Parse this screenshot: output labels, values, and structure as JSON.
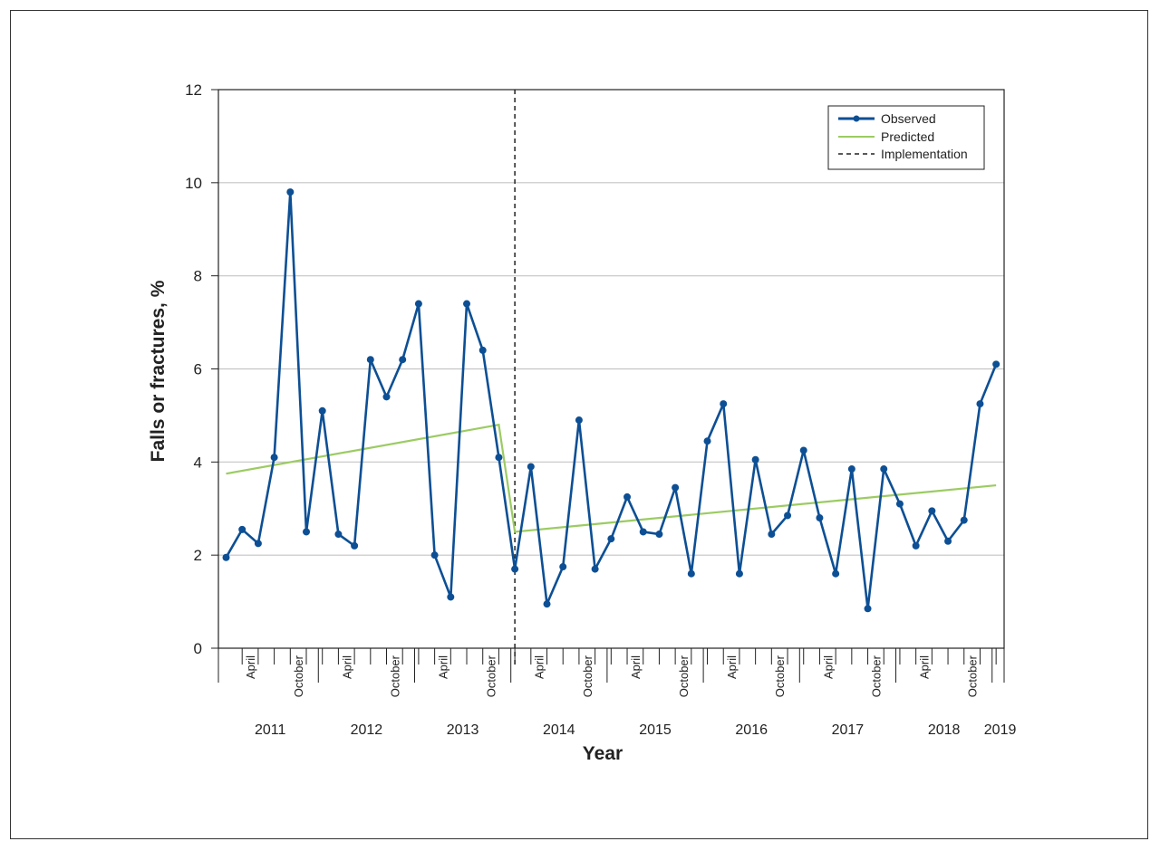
{
  "chart_data": {
    "type": "line",
    "title": "",
    "xlabel": "Year",
    "ylabel": "Falls or fractures, %",
    "ylim": [
      0,
      12
    ],
    "yticks": [
      0,
      2,
      4,
      6,
      8,
      10,
      12
    ],
    "grid": "horizontal",
    "legend_position": "top-right",
    "x_start": "2011-01",
    "x_end": "2019-02",
    "years": [
      "2011",
      "2012",
      "2013",
      "2014",
      "2015",
      "2016",
      "2017",
      "2018",
      "2019"
    ],
    "month_labels": [
      "April",
      "October"
    ],
    "series": [
      {
        "name": "Observed",
        "color": "#0d4f94",
        "marker": "circle",
        "x": [
          "2011-01",
          "2011-03",
          "2011-05",
          "2011-07",
          "2011-09",
          "2011-11",
          "2012-01",
          "2012-03",
          "2012-05",
          "2012-07",
          "2012-09",
          "2012-11",
          "2013-01",
          "2013-03",
          "2013-05",
          "2013-07",
          "2013-09",
          "2013-11",
          "2014-01",
          "2014-03",
          "2014-05",
          "2014-07",
          "2014-09",
          "2014-11",
          "2015-01",
          "2015-03",
          "2015-05",
          "2015-07",
          "2015-09",
          "2015-11",
          "2016-01",
          "2016-03",
          "2016-05",
          "2016-07",
          "2016-09",
          "2016-11",
          "2017-01",
          "2017-03",
          "2017-05",
          "2017-07",
          "2017-09",
          "2017-11",
          "2018-01",
          "2018-03",
          "2018-05",
          "2018-07",
          "2018-09",
          "2018-11",
          "2019-01"
        ],
        "values": [
          1.95,
          2.55,
          2.25,
          4.1,
          9.8,
          2.5,
          5.1,
          2.45,
          2.2,
          6.2,
          5.4,
          6.2,
          7.4,
          2.0,
          1.1,
          7.4,
          6.4,
          4.1,
          1.7,
          3.9,
          0.95,
          1.75,
          4.9,
          1.7,
          2.35,
          3.25,
          2.5,
          2.45,
          3.45,
          1.6,
          4.45,
          5.25,
          1.6,
          4.05,
          2.45,
          2.85,
          4.25,
          2.8,
          1.6,
          3.85,
          0.85,
          3.85,
          3.1,
          2.2,
          2.95,
          2.3,
          2.75,
          5.25,
          6.1
        ]
      },
      {
        "name": "Predicted",
        "color": "#9ccb63",
        "x": [
          "2011-01",
          "2013-11",
          "2014-01",
          "2019-01"
        ],
        "values": [
          3.75,
          4.8,
          2.5,
          3.5
        ]
      }
    ],
    "vertical_line": {
      "name": "Implementation",
      "x": "2014-01",
      "style": "dashed"
    },
    "legend": [
      "Observed",
      "Predicted",
      "Implementation"
    ]
  }
}
